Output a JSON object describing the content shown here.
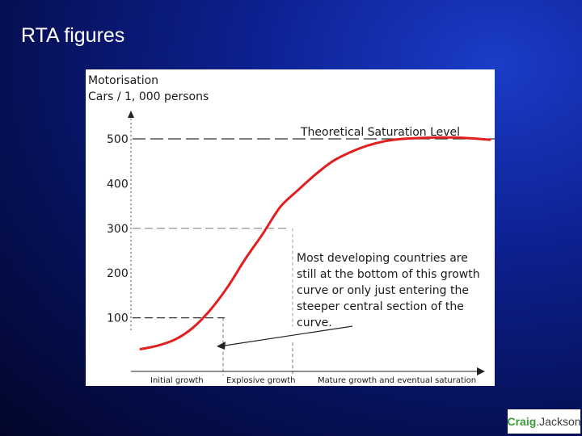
{
  "slide": {
    "title": "RTA figures"
  },
  "colors": {
    "curve": "#e02020",
    "axis": "#222222",
    "dash": "#333333",
    "panel": "#ffffff"
  },
  "logo": {
    "part1": "Craig",
    "part2": ".Jackson"
  },
  "chart_data": {
    "type": "line",
    "ylabel_line1": "Motorisation",
    "ylabel_line2": "Cars / 1, 000 persons",
    "yticks": [
      "100",
      "200",
      "300",
      "400",
      "500"
    ],
    "ytick_values": [
      100,
      200,
      300,
      400,
      500
    ],
    "ylim": [
      0,
      540
    ],
    "xlim": [
      0,
      10
    ],
    "saturation_label": "Theoretical Saturation Level",
    "phase_labels": [
      "Initial growth",
      "Explosive growth",
      "Mature growth and eventual saturation"
    ],
    "annotation": [
      "Most developing countries are",
      "still at the bottom of this growth",
      "curve or only just entering the",
      "steeper central section of the",
      "curve."
    ],
    "series": [
      {
        "x": [
          0,
          0.5,
          1,
          1.5,
          2,
          2.5,
          3,
          3.5,
          4,
          4.5,
          5,
          5.5,
          6,
          6.5,
          7,
          7.5,
          8,
          8.5,
          9,
          9.5,
          10
        ],
        "y": [
          30,
          38,
          52,
          78,
          118,
          170,
          232,
          288,
          348,
          385,
          420,
          450,
          470,
          485,
          495,
          500,
          502,
          503,
          503,
          501,
          498
        ]
      }
    ]
  }
}
